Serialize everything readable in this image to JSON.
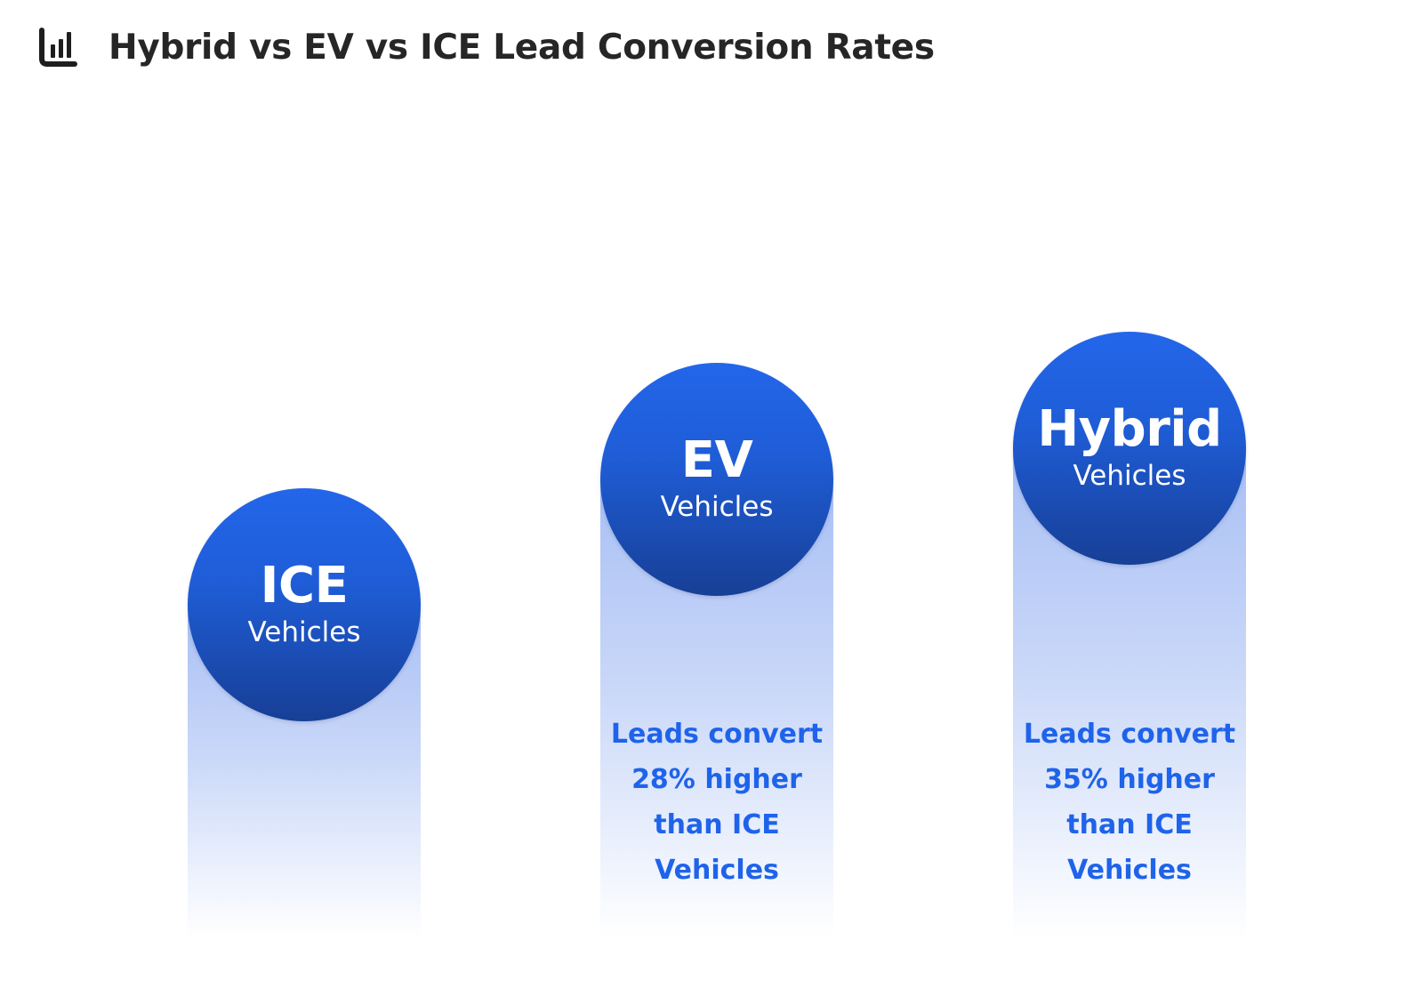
{
  "header": {
    "title": "Hybrid vs EV vs ICE Lead Conversion Rates",
    "icon": "bar-chart-icon"
  },
  "colors": {
    "circle_top": "#2366ea",
    "circle_bottom": "#173f96",
    "column_top": "#a9c0f5",
    "note_text": "#1f63ea",
    "title_text": "#262626"
  },
  "chart_data": {
    "type": "bar",
    "title": "Hybrid vs EV vs ICE Lead Conversion Rates",
    "categories": [
      "ICE",
      "EV",
      "Hybrid"
    ],
    "series": [
      {
        "values": [
          0,
          28,
          35
        ]
      }
    ],
    "unit": "%",
    "bars": [
      {
        "name": "ICE",
        "subtitle": "Vehicles",
        "value": 0,
        "note": ""
      },
      {
        "name": "EV",
        "subtitle": "Vehicles",
        "value": 28,
        "note": "Leads convert 28% higher than ICE Vehicles"
      },
      {
        "name": "Hybrid",
        "subtitle": "Vehicles",
        "value": 35,
        "note": "Leads convert 35% higher than ICE Vehicles"
      }
    ],
    "grid": false,
    "legend": "none"
  }
}
